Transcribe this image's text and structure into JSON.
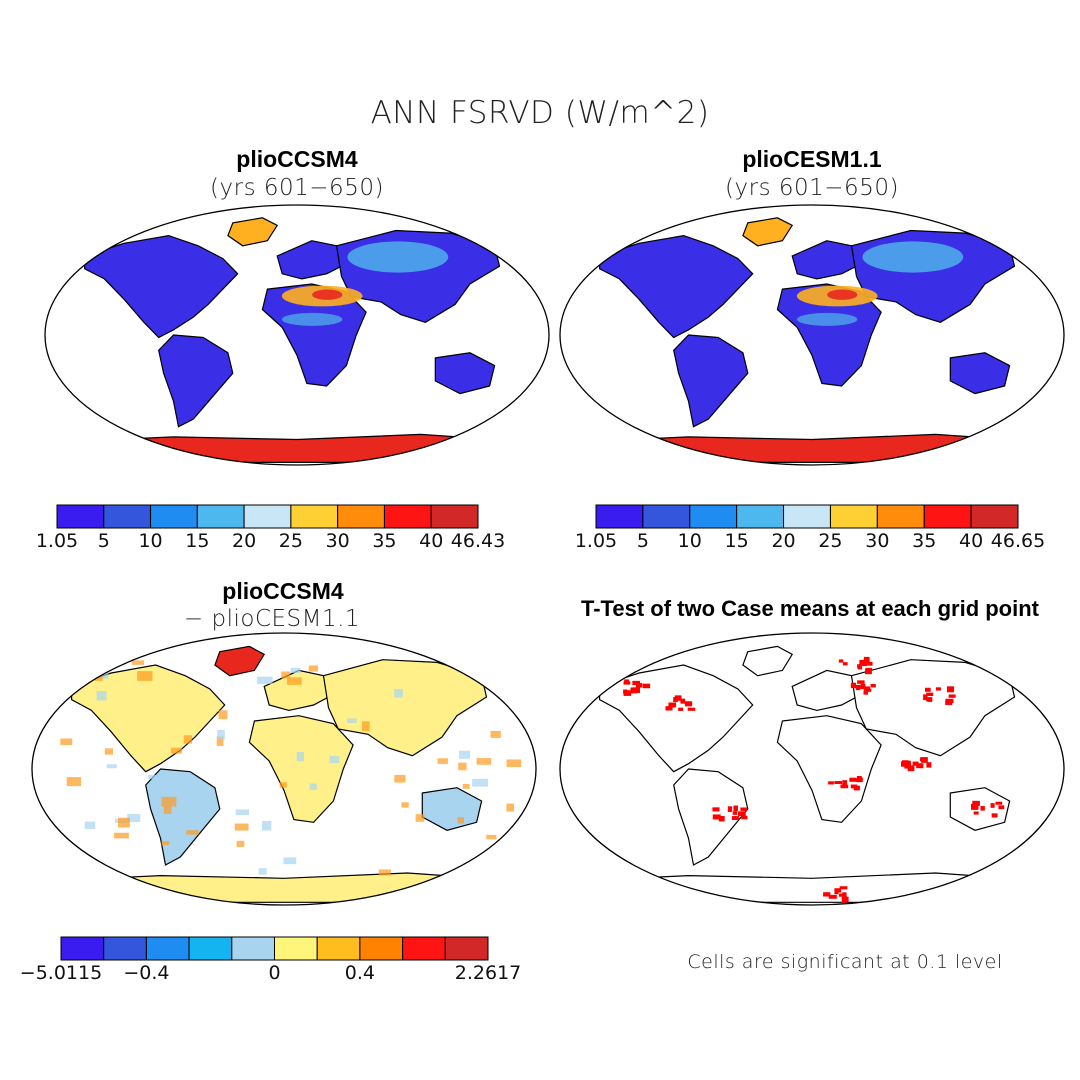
{
  "figure": {
    "main_title": "ANN FSRVD (W/m^2)"
  },
  "panels": [
    {
      "id": "pliocc",
      "title": "plioCCSM4",
      "subtitle": "(yrs 601−650)",
      "colorbar": {
        "colors": [
          "#3a1cf0",
          "#3456dc",
          "#1e8cf0",
          "#4cb8ee",
          "#c8e6f6",
          "#ffd034",
          "#ff8c0a",
          "#ff1414",
          "#d22828"
        ],
        "tick_labels": [
          "1.05",
          "5",
          "10",
          "15",
          "20",
          "25",
          "30",
          "35",
          "40",
          "46.43"
        ]
      }
    },
    {
      "id": "pliocesm",
      "title": "plioCESM1.1",
      "subtitle": "(yrs 601−650)",
      "colorbar": {
        "colors": [
          "#3a1cf0",
          "#3456dc",
          "#1e8cf0",
          "#4cb8ee",
          "#c8e6f6",
          "#ffd034",
          "#ff8c0a",
          "#ff1414",
          "#d22828"
        ],
        "tick_labels": [
          "1.05",
          "5",
          "10",
          "15",
          "20",
          "25",
          "30",
          "35",
          "40",
          "46.65"
        ]
      }
    },
    {
      "id": "diff",
      "title": "plioCCSM4",
      "subtitle": "− plioCESM1.1",
      "colorbar": {
        "colors": [
          "#3a1cf0",
          "#3456dc",
          "#1e8cf0",
          "#14b4f0",
          "#a8d4f0",
          "#fff57a",
          "#ffbe1e",
          "#ff8200",
          "#ff1414",
          "#d22828"
        ],
        "tick_labels": [
          "−5.0115",
          "−0.4",
          "0",
          "0.4",
          "2.2617"
        ],
        "tick_boundaries": [
          0,
          2,
          5,
          7,
          10
        ]
      }
    },
    {
      "id": "ttest",
      "title": "T-Test of two Case means at each grid point",
      "note": "Cells are significant at 0.1 level",
      "marker_color": "#ff0000"
    }
  ],
  "map_colors": {
    "land_cold": "#3a2ee6",
    "land_cool": "#4ea8ea",
    "land_warm": "#ffb020",
    "land_hot": "#e8281e",
    "diff_neutral": "#fff08a",
    "diff_neg": "#a8d4f0",
    "diff_pos": "#ff9a20"
  }
}
